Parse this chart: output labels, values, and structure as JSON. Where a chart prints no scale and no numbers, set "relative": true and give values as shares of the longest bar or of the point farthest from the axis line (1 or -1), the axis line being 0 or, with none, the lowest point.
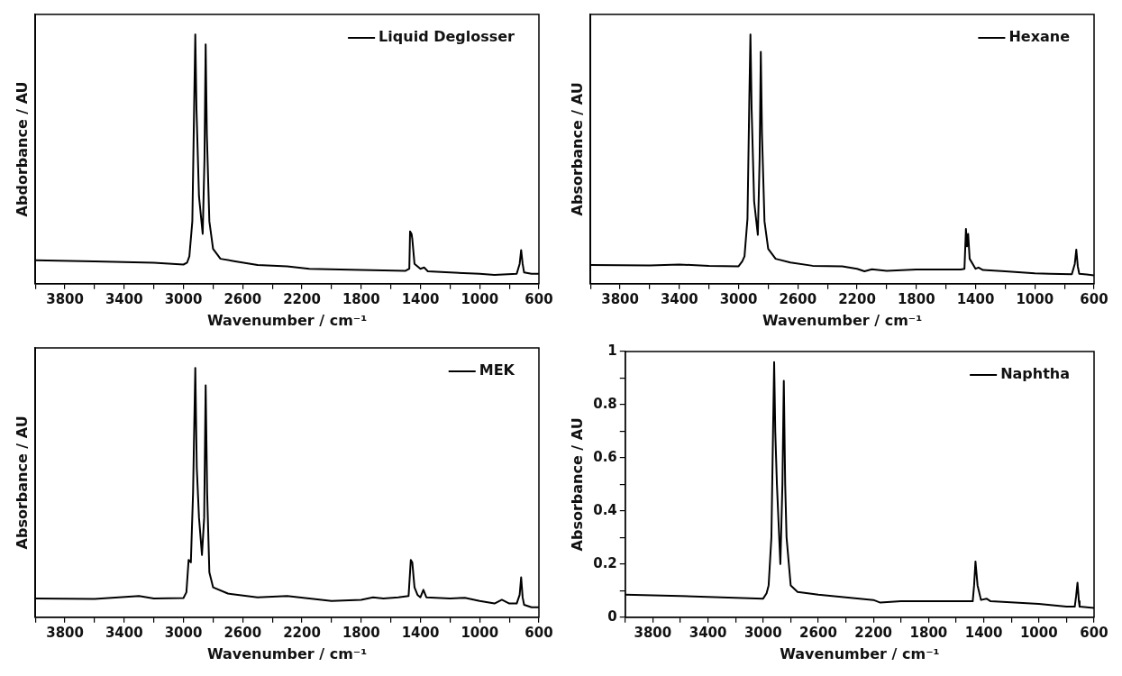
{
  "chart_data": [
    {
      "type": "line",
      "xlabel": "Wavenumber / cm⁻¹",
      "ylabel": "Abdorbance / AU",
      "relative": true,
      "xlim": [
        4000,
        600
      ],
      "xticks": [
        {
          "value": 4000,
          "label": null
        },
        3800,
        {
          "value": 3600,
          "label": null
        },
        3400,
        {
          "value": 3200,
          "label": null
        },
        3000,
        {
          "value": 2800,
          "label": null
        },
        2600,
        {
          "value": 2400,
          "label": null
        },
        2200,
        {
          "value": 2000,
          "label": null
        },
        1800,
        {
          "value": 1600,
          "label": null
        },
        1400,
        {
          "value": 1200,
          "label": null
        },
        1000,
        {
          "value": 800,
          "label": null
        },
        600
      ],
      "legend": "top right",
      "marker": "none",
      "series": [
        {
          "name": "Liquid Deglosser",
          "color": "#000000",
          "x": [
            4000,
            3600,
            3200,
            3000,
            2975,
            2960,
            2940,
            2928,
            2920,
            2912,
            2895,
            2870,
            2858,
            2850,
            2842,
            2825,
            2800,
            2750,
            2650,
            2500,
            2300,
            2150,
            1800,
            1500,
            1475,
            1470,
            1460,
            1455,
            1440,
            1400,
            1375,
            1350,
            1200,
            1000,
            900,
            750,
            730,
            720,
            710,
            700,
            650,
            600
          ],
          "values": [
            0.094,
            0.09,
            0.084,
            0.077,
            0.085,
            0.11,
            0.25,
            0.7,
            1.0,
            0.7,
            0.35,
            0.2,
            0.5,
            0.96,
            0.6,
            0.25,
            0.14,
            0.1,
            0.09,
            0.075,
            0.07,
            0.06,
            0.055,
            0.052,
            0.06,
            0.21,
            0.2,
            0.18,
            0.08,
            0.06,
            0.065,
            0.05,
            0.045,
            0.04,
            0.035,
            0.04,
            0.08,
            0.135,
            0.08,
            0.045,
            0.04,
            0.04
          ]
        }
      ]
    },
    {
      "type": "line",
      "xlabel": "Wavenumber / cm⁻¹",
      "ylabel": "Absorbance / AU",
      "relative": true,
      "xlim": [
        4000,
        600
      ],
      "xticks": [
        {
          "value": 4000,
          "label": null
        },
        3800,
        {
          "value": 3600,
          "label": null
        },
        3400,
        {
          "value": 3200,
          "label": null
        },
        3000,
        {
          "value": 2800,
          "label": null
        },
        2600,
        {
          "value": 2400,
          "label": null
        },
        2200,
        {
          "value": 2000,
          "label": null
        },
        1800,
        {
          "value": 1600,
          "label": null
        },
        1400,
        {
          "value": 1200,
          "label": null
        },
        1000,
        {
          "value": 800,
          "label": null
        },
        600
      ],
      "legend": "top right",
      "marker": "none",
      "series": [
        {
          "name": "Hexane",
          "color": "#000000",
          "x": [
            4000,
            3600,
            3400,
            3200,
            3000,
            2975,
            2960,
            2940,
            2928,
            2920,
            2912,
            2895,
            2870,
            2858,
            2850,
            2842,
            2825,
            2800,
            2750,
            2650,
            2500,
            2300,
            2200,
            2150,
            2100,
            2000,
            1800,
            1500,
            1475,
            1465,
            1458,
            1450,
            1440,
            1400,
            1380,
            1350,
            1200,
            1000,
            900,
            750,
            730,
            720,
            710,
            700,
            650,
            600
          ],
          "values": [
            0.075,
            0.073,
            0.077,
            0.072,
            0.07,
            0.09,
            0.11,
            0.26,
            0.72,
            1.0,
            0.7,
            0.33,
            0.196,
            0.5,
            0.93,
            0.6,
            0.25,
            0.14,
            0.1,
            0.085,
            0.072,
            0.07,
            0.06,
            0.05,
            0.058,
            0.052,
            0.057,
            0.057,
            0.06,
            0.22,
            0.15,
            0.2,
            0.1,
            0.06,
            0.065,
            0.055,
            0.05,
            0.042,
            0.04,
            0.038,
            0.08,
            0.137,
            0.07,
            0.04,
            0.037,
            0.034
          ]
        }
      ]
    },
    {
      "type": "line",
      "xlabel": "Wavenumber / cm⁻¹",
      "ylabel": "Absorbance / AU",
      "relative": true,
      "xlim": [
        4000,
        600
      ],
      "xticks": [
        {
          "value": 4000,
          "label": null
        },
        3800,
        {
          "value": 3600,
          "label": null
        },
        3400,
        {
          "value": 3200,
          "label": null
        },
        3000,
        {
          "value": 2800,
          "label": null
        },
        2600,
        {
          "value": 2400,
          "label": null
        },
        2200,
        {
          "value": 2000,
          "label": null
        },
        1800,
        {
          "value": 1600,
          "label": null
        },
        1400,
        {
          "value": 1200,
          "label": null
        },
        1000,
        {
          "value": 800,
          "label": null
        },
        600
      ],
      "legend": "top right",
      "marker": "none",
      "series": [
        {
          "name": "MEK",
          "color": "#000000",
          "x": [
            4000,
            3600,
            3300,
            3200,
            3000,
            2980,
            2965,
            2950,
            2935,
            2920,
            2910,
            2895,
            2875,
            2860,
            2850,
            2840,
            2825,
            2800,
            2700,
            2500,
            2300,
            2000,
            1800,
            1720,
            1650,
            1550,
            1480,
            1465,
            1455,
            1440,
            1420,
            1400,
            1380,
            1360,
            1200,
            1100,
            1000,
            900,
            850,
            800,
            750,
            730,
            720,
            710,
            700,
            650,
            600
          ],
          "values": [
            0.075,
            0.073,
            0.085,
            0.075,
            0.077,
            0.1,
            0.23,
            0.22,
            0.5,
            1.0,
            0.6,
            0.4,
            0.25,
            0.4,
            0.93,
            0.5,
            0.18,
            0.12,
            0.095,
            0.08,
            0.085,
            0.065,
            0.07,
            0.08,
            0.075,
            0.08,
            0.085,
            0.23,
            0.22,
            0.12,
            0.09,
            0.08,
            0.11,
            0.08,
            0.075,
            0.078,
            0.065,
            0.055,
            0.07,
            0.055,
            0.055,
            0.09,
            0.16,
            0.08,
            0.05,
            0.04,
            0.04
          ]
        }
      ]
    },
    {
      "type": "line",
      "xlabel": "Wavenumber / cm⁻¹",
      "ylabel": "Absorbance / AU",
      "xlim": [
        4000,
        600
      ],
      "xticks": [
        {
          "value": 4000,
          "label": null
        },
        3800,
        {
          "value": 3600,
          "label": null
        },
        3400,
        {
          "value": 3200,
          "label": null
        },
        3000,
        {
          "value": 2800,
          "label": null
        },
        2600,
        {
          "value": 2400,
          "label": null
        },
        2200,
        {
          "value": 2000,
          "label": null
        },
        1800,
        {
          "value": 1600,
          "label": null
        },
        1400,
        {
          "value": 1200,
          "label": null
        },
        1000,
        {
          "value": 800,
          "label": null
        },
        600
      ],
      "ylim": [
        0,
        1
      ],
      "yticks": [
        0,
        {
          "value": 0.1,
          "label": null
        },
        0.2,
        {
          "value": 0.3,
          "label": null
        },
        0.4,
        {
          "value": 0.5,
          "label": null
        },
        0.6,
        {
          "value": 0.7,
          "label": null
        },
        0.8,
        {
          "value": 0.9,
          "label": null
        },
        1
      ],
      "legend": "top right",
      "marker": "none",
      "series": [
        {
          "name": "Naphtha",
          "color": "#000000",
          "x": [
            4000,
            3600,
            3000,
            2975,
            2960,
            2940,
            2928,
            2920,
            2912,
            2900,
            2875,
            2860,
            2850,
            2840,
            2830,
            2800,
            2750,
            2600,
            2400,
            2200,
            2150,
            2000,
            1800,
            1480,
            1470,
            1460,
            1445,
            1420,
            1380,
            1350,
            1000,
            800,
            740,
            730,
            720,
            710,
            705,
            600
          ],
          "values": [
            0.085,
            0.08,
            0.07,
            0.09,
            0.12,
            0.3,
            0.7,
            0.96,
            0.7,
            0.5,
            0.2,
            0.5,
            0.89,
            0.5,
            0.3,
            0.12,
            0.095,
            0.085,
            0.075,
            0.065,
            0.055,
            0.06,
            0.06,
            0.06,
            0.12,
            0.21,
            0.12,
            0.065,
            0.07,
            0.06,
            0.05,
            0.04,
            0.04,
            0.08,
            0.13,
            0.06,
            0.04,
            0.035
          ]
        }
      ]
    }
  ]
}
